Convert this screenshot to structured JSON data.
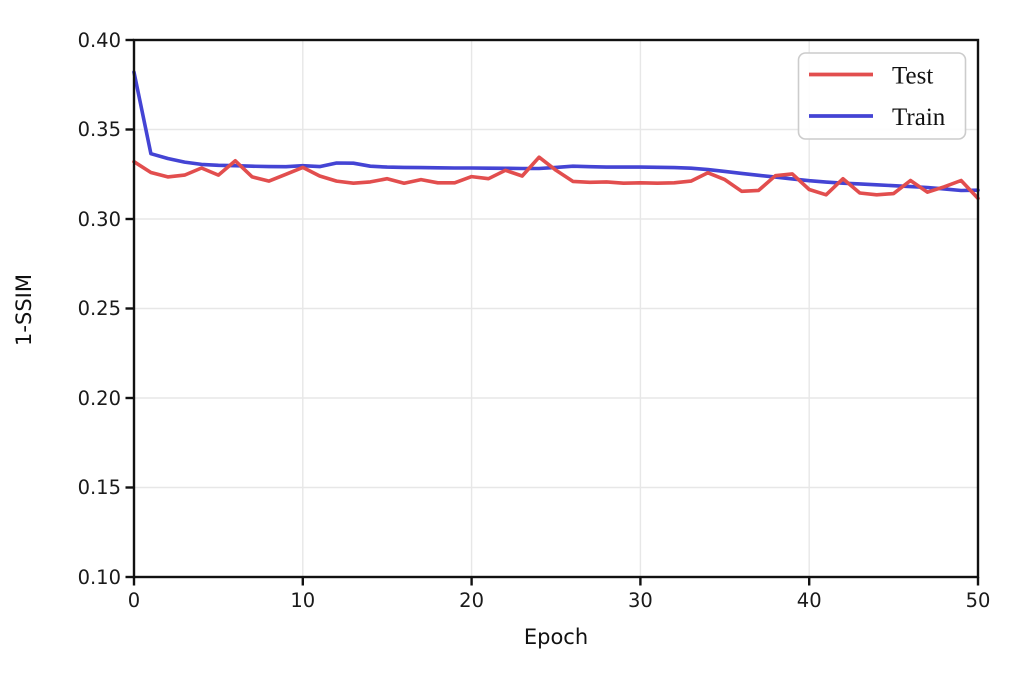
{
  "figure": {
    "background": "#ffffff"
  },
  "chart_data": {
    "type": "line",
    "title": "",
    "xlabel": "Epoch",
    "ylabel": "1-SSIM",
    "xlim": [
      0,
      50
    ],
    "ylim": [
      0.1,
      0.4
    ],
    "x_ticks": [
      0,
      10,
      20,
      30,
      40,
      50
    ],
    "x_tick_labels": [
      "0",
      "10",
      "20",
      "30",
      "40",
      "50"
    ],
    "y_ticks": [
      0.4,
      0.35,
      0.3,
      0.25,
      0.2,
      0.15,
      0.1
    ],
    "y_tick_labels": [
      "0.40",
      "0.35",
      "0.30",
      "0.25",
      "0.20",
      "0.15",
      "0.10"
    ],
    "grid": true,
    "grid_color": "#e7e7e7",
    "frame_color": "#111111",
    "legend": {
      "position": "upper right",
      "entries": [
        "Test",
        "Train"
      ]
    },
    "x": [
      0,
      1,
      2,
      3,
      4,
      5,
      6,
      7,
      8,
      9,
      10,
      11,
      12,
      13,
      14,
      15,
      16,
      17,
      18,
      19,
      20,
      21,
      22,
      23,
      24,
      25,
      26,
      27,
      28,
      29,
      30,
      31,
      32,
      33,
      34,
      35,
      36,
      37,
      38,
      39,
      40,
      41,
      42,
      43,
      44,
      45,
      46,
      47,
      48,
      49,
      50
    ],
    "series": [
      {
        "name": "Test",
        "color": "#e24e4e",
        "values": [
          0.332,
          0.326,
          0.3235,
          0.3245,
          0.3285,
          0.3245,
          0.3325,
          0.3235,
          0.3212,
          0.325,
          0.3288,
          0.324,
          0.3212,
          0.32,
          0.3207,
          0.3225,
          0.32,
          0.322,
          0.3202,
          0.3202,
          0.3237,
          0.3225,
          0.3272,
          0.324,
          0.3345,
          0.3272,
          0.321,
          0.3205,
          0.3207,
          0.32,
          0.3202,
          0.32,
          0.3202,
          0.3212,
          0.3258,
          0.322,
          0.3155,
          0.316,
          0.3242,
          0.3252,
          0.3165,
          0.3135,
          0.3225,
          0.3145,
          0.3135,
          0.3142,
          0.3215,
          0.315,
          0.318,
          0.3215,
          0.3115
        ]
      },
      {
        "name": "Train",
        "color": "#4444d4",
        "values": [
          0.382,
          0.3365,
          0.3338,
          0.3318,
          0.3305,
          0.33,
          0.3298,
          0.3295,
          0.3293,
          0.3292,
          0.3298,
          0.3293,
          0.3313,
          0.3312,
          0.3295,
          0.329,
          0.3288,
          0.3287,
          0.3286,
          0.3285,
          0.3285,
          0.3284,
          0.3283,
          0.3282,
          0.3282,
          0.3288,
          0.3295,
          0.3292,
          0.329,
          0.329,
          0.329,
          0.3289,
          0.3287,
          0.3284,
          0.3276,
          0.3266,
          0.3255,
          0.3244,
          0.3234,
          0.3224,
          0.3214,
          0.3206,
          0.32,
          0.3196,
          0.3191,
          0.3186,
          0.3181,
          0.3176,
          0.3168,
          0.3159,
          0.3161
        ]
      }
    ]
  }
}
